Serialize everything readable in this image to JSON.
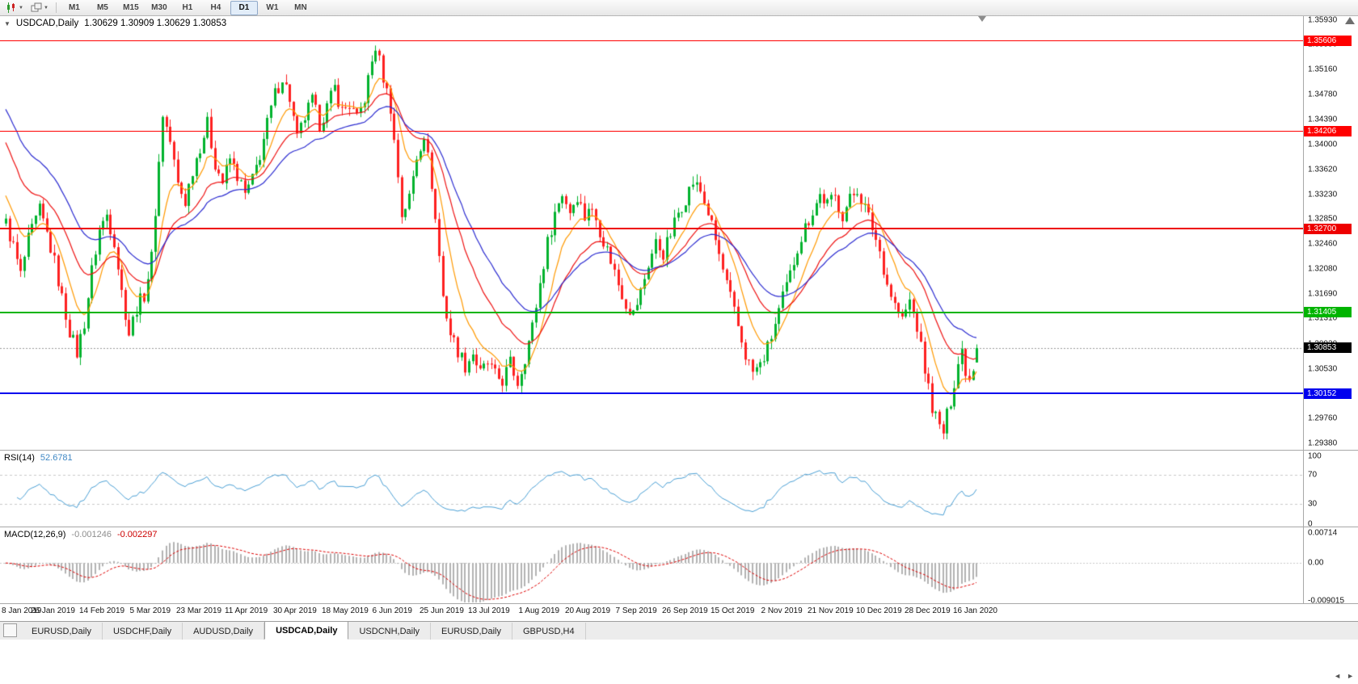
{
  "toolbar": {
    "timeframes": [
      {
        "label": "M1",
        "active": false
      },
      {
        "label": "M5",
        "active": false
      },
      {
        "label": "M15",
        "active": false
      },
      {
        "label": "M30",
        "active": false
      },
      {
        "label": "H1",
        "active": false
      },
      {
        "label": "H4",
        "active": false
      },
      {
        "label": "D1",
        "active": true
      },
      {
        "label": "W1",
        "active": false
      },
      {
        "label": "MN",
        "active": false
      }
    ]
  },
  "chart": {
    "header": {
      "collapse_icon": "▼",
      "title": "USDCAD,Daily",
      "ohlc": "1.30629 1.30909 1.30629 1.30853"
    },
    "price_axis": {
      "labels": [
        "1.35930",
        "1.35550",
        "1.35160",
        "1.34780",
        "1.34390",
        "1.34000",
        "1.33620",
        "1.33230",
        "1.32850",
        "1.32460",
        "1.32080",
        "1.31690",
        "1.31310",
        "1.30920",
        "1.30530",
        "1.30140",
        "1.29760",
        "1.29380"
      ]
    },
    "hlines": [
      {
        "price": 1.35606,
        "badge": "1.35606",
        "color": "#ff0000",
        "thickness": 1
      },
      {
        "price": 1.34206,
        "badge": "1.34206",
        "color": "#ff0000",
        "thickness": 1
      },
      {
        "price": 1.327,
        "badge": "1.32700",
        "color": "#ee0000",
        "thickness": 2
      },
      {
        "price": 1.31405,
        "badge": "1.31405",
        "color": "#00b400",
        "thickness": 2
      },
      {
        "price": 1.30152,
        "badge": "1.30152",
        "color": "#0000ee",
        "thickness": 2
      }
    ],
    "current_price": {
      "value": 1.30853,
      "badge": "1.30853",
      "color": "#000000"
    }
  },
  "rsi": {
    "name": "RSI(14)",
    "value": "52.6781",
    "axis_labels": [
      "100",
      "70",
      "30",
      "0"
    ]
  },
  "macd": {
    "name": "MACD(12,26,9)",
    "main_value": "-0.001246",
    "signal_value": "-0.002297",
    "axis_labels": [
      "0.00714",
      "0.00",
      "-0.009015"
    ]
  },
  "tabs": {
    "items": [
      {
        "label": "EURUSD,Daily",
        "active": false
      },
      {
        "label": "USDCHF,Daily",
        "active": false
      },
      {
        "label": "AUDUSD,Daily",
        "active": false
      },
      {
        "label": "USDCAD,Daily",
        "active": true
      },
      {
        "label": "USDCNH,Daily",
        "active": false
      },
      {
        "label": "EURUSD,Daily",
        "active": false
      },
      {
        "label": "GBPUSD,H4",
        "active": false
      }
    ]
  },
  "chart_data": {
    "type": "candlestick",
    "title": "USDCAD,Daily",
    "symbol": "USDCAD",
    "timeframe": "Daily",
    "bar_count": 261,
    "bars_per_label": 13,
    "x_labels": [
      "8 Jan 2019",
      "26 Jan 2019",
      "14 Feb 2019",
      "5 Mar 2019",
      "23 Mar 2019",
      "11 Apr 2019",
      "30 Apr 2019",
      "18 May 2019",
      "6 Jun 2019",
      "25 Jun 2019",
      "13 Jul 2019",
      "1 Aug 2019",
      "20 Aug 2019",
      "7 Sep 2019",
      "26 Sep 2019",
      "15 Oct 2019",
      "2 Nov 2019",
      "21 Nov 2019",
      "10 Dec 2019",
      "28 Dec 2019",
      "16 Jan 2020"
    ],
    "y_range": {
      "min": 1.2928,
      "max": 1.3599
    },
    "last_bar": {
      "open": 1.30629,
      "high": 1.30909,
      "low": 1.30629,
      "close": 1.30853
    },
    "horizontal_lines": [
      1.35606,
      1.34206,
      1.327,
      1.31405,
      1.30152
    ],
    "close_waypoints": [
      [
        0,
        1.3278
      ],
      [
        2,
        1.3242
      ],
      [
        4,
        1.3198
      ],
      [
        6,
        1.3252
      ],
      [
        9,
        1.3298
      ],
      [
        11,
        1.3262
      ],
      [
        13,
        1.3218
      ],
      [
        15,
        1.3162
      ],
      [
        17,
        1.3112
      ],
      [
        19,
        1.3078
      ],
      [
        21,
        1.3125
      ],
      [
        23,
        1.3205
      ],
      [
        25,
        1.3268
      ],
      [
        27,
        1.3292
      ],
      [
        29,
        1.3252
      ],
      [
        31,
        1.3172
      ],
      [
        33,
        1.3108
      ],
      [
        35,
        1.3148
      ],
      [
        37,
        1.3168
      ],
      [
        39,
        1.3225
      ],
      [
        41,
        1.3372
      ],
      [
        42,
        1.3448
      ],
      [
        44,
        1.3405
      ],
      [
        46,
        1.3338
      ],
      [
        48,
        1.3312
      ],
      [
        50,
        1.3362
      ],
      [
        52,
        1.3398
      ],
      [
        54,
        1.3432
      ],
      [
        56,
        1.3372
      ],
      [
        58,
        1.3342
      ],
      [
        60,
        1.3378
      ],
      [
        62,
        1.3352
      ],
      [
        64,
        1.3322
      ],
      [
        66,
        1.3345
      ],
      [
        68,
        1.3385
      ],
      [
        70,
        1.3432
      ],
      [
        72,
        1.3478
      ],
      [
        74,
        1.3505
      ],
      [
        76,
        1.3472
      ],
      [
        78,
        1.3408
      ],
      [
        80,
        1.3442
      ],
      [
        82,
        1.3468
      ],
      [
        84,
        1.3432
      ],
      [
        86,
        1.3458
      ],
      [
        88,
        1.3488
      ],
      [
        90,
        1.3452
      ],
      [
        92,
        1.3462
      ],
      [
        94,
        1.3438
      ],
      [
        96,
        1.3472
      ],
      [
        98,
        1.3528
      ],
      [
        99,
        1.3552
      ],
      [
        101,
        1.3505
      ],
      [
        103,
        1.3458
      ],
      [
        105,
        1.3352
      ],
      [
        106,
        1.3292
      ],
      [
        108,
        1.3318
      ],
      [
        110,
        1.3382
      ],
      [
        112,
        1.3418
      ],
      [
        114,
        1.334
      ],
      [
        116,
        1.3228
      ],
      [
        117,
        1.3165
      ],
      [
        119,
        1.3108
      ],
      [
        121,
        1.3082
      ],
      [
        123,
        1.3058
      ],
      [
        125,
        1.3078
      ],
      [
        127,
        1.3045
      ],
      [
        129,
        1.3062
      ],
      [
        131,
        1.3042
      ],
      [
        133,
        1.3035
      ],
      [
        135,
        1.3062
      ],
      [
        137,
        1.3032
      ],
      [
        139,
        1.3072
      ],
      [
        141,
        1.3118
      ],
      [
        143,
        1.3185
      ],
      [
        145,
        1.3248
      ],
      [
        147,
        1.3295
      ],
      [
        149,
        1.3325
      ],
      [
        151,
        1.3298
      ],
      [
        153,
        1.3322
      ],
      [
        155,
        1.3288
      ],
      [
        156,
        1.3305
      ],
      [
        158,
        1.3285
      ],
      [
        160,
        1.3252
      ],
      [
        162,
        1.3222
      ],
      [
        164,
        1.3185
      ],
      [
        166,
        1.3155
      ],
      [
        168,
        1.3138
      ],
      [
        170,
        1.3172
      ],
      [
        172,
        1.3215
      ],
      [
        174,
        1.3248
      ],
      [
        176,
        1.3232
      ],
      [
        178,
        1.3262
      ],
      [
        180,
        1.3295
      ],
      [
        182,
        1.3318
      ],
      [
        184,
        1.3342
      ],
      [
        186,
        1.3328
      ],
      [
        188,
        1.3295
      ],
      [
        190,
        1.3252
      ],
      [
        192,
        1.3205
      ],
      [
        194,
        1.3162
      ],
      [
        196,
        1.3118
      ],
      [
        198,
        1.3075
      ],
      [
        200,
        1.3048
      ],
      [
        202,
        1.3058
      ],
      [
        204,
        1.3085
      ],
      [
        206,
        1.3122
      ],
      [
        208,
        1.3162
      ],
      [
        210,
        1.3198
      ],
      [
        212,
        1.3242
      ],
      [
        214,
        1.3272
      ],
      [
        216,
        1.3298
      ],
      [
        218,
        1.3322
      ],
      [
        220,
        1.3308
      ],
      [
        222,
        1.3318
      ],
      [
        224,
        1.3292
      ],
      [
        226,
        1.3315
      ],
      [
        228,
        1.3332
      ],
      [
        230,
        1.3302
      ],
      [
        232,
        1.3272
      ],
      [
        234,
        1.3235
      ],
      [
        236,
        1.3185
      ],
      [
        238,
        1.3152
      ],
      [
        240,
        1.3128
      ],
      [
        242,
        1.3158
      ],
      [
        244,
        1.3118
      ],
      [
        246,
        1.3052
      ],
      [
        248,
        1.2995
      ],
      [
        250,
        1.2962
      ],
      [
        251,
        1.2955
      ],
      [
        253,
        1.3005
      ],
      [
        255,
        1.3062
      ],
      [
        256,
        1.3082
      ],
      [
        257,
        1.3052
      ],
      [
        258,
        1.3038
      ],
      [
        259,
        1.3058
      ],
      [
        260,
        1.30853
      ]
    ],
    "moving_averages": [
      {
        "period": 9,
        "color": "#ff9900",
        "seed": 1.333,
        "label": "fast-ma"
      },
      {
        "period": 21,
        "color": "#ee1111",
        "seed": 1.3415,
        "label": "mid-ma"
      },
      {
        "period": 34,
        "color": "#2b2bd0",
        "seed": 1.3465,
        "label": "slow-ma"
      }
    ],
    "rsi": {
      "period": 14,
      "current": 52.6781,
      "range": [
        0,
        100
      ],
      "levels": [
        70,
        30
      ]
    },
    "macd": {
      "fast": 12,
      "slow": 26,
      "signal": 9,
      "current_main": -0.001246,
      "current_signal": -0.002297,
      "axis_max": 0.00714,
      "axis_min": -0.009015
    }
  }
}
